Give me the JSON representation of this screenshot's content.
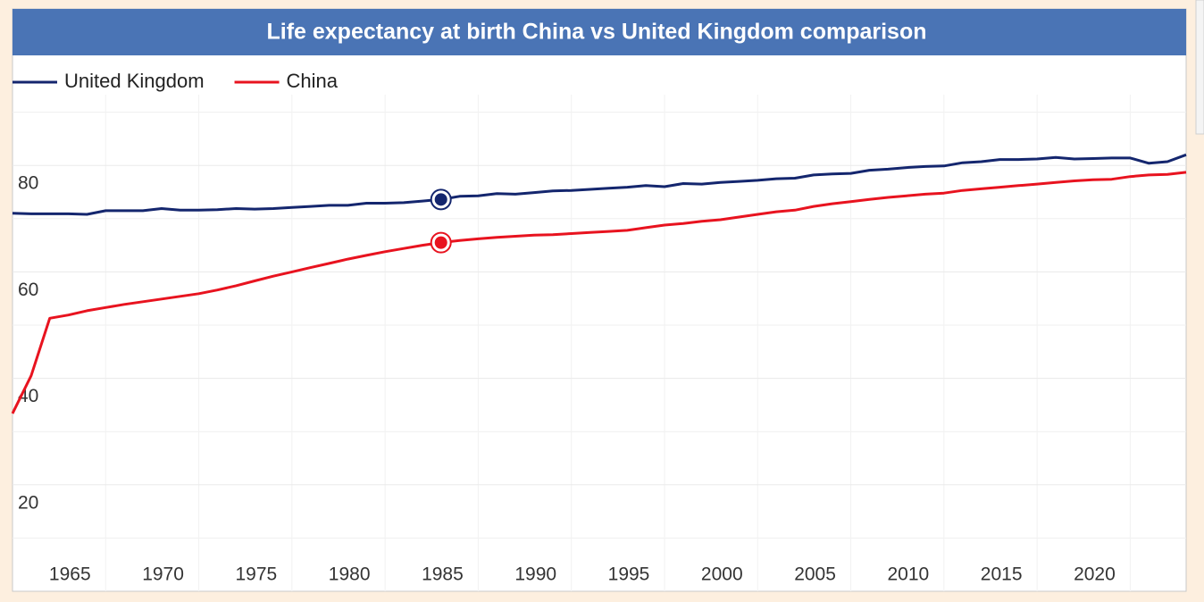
{
  "chart_data": {
    "type": "line",
    "title": "Life expectancy at birth China vs United Kingdom comparison",
    "x": [
      1960,
      1961,
      1962,
      1963,
      1964,
      1965,
      1966,
      1967,
      1968,
      1969,
      1970,
      1971,
      1972,
      1973,
      1974,
      1975,
      1976,
      1977,
      1978,
      1979,
      1980,
      1981,
      1982,
      1983,
      1984,
      1985,
      1986,
      1987,
      1988,
      1989,
      1990,
      1991,
      1992,
      1993,
      1994,
      1995,
      1996,
      1997,
      1998,
      1999,
      2000,
      2001,
      2002,
      2003,
      2004,
      2005,
      2006,
      2007,
      2008,
      2009,
      2010,
      2011,
      2012,
      2013,
      2014,
      2015,
      2016,
      2017,
      2018,
      2019,
      2020,
      2021,
      2022,
      2023
    ],
    "series": [
      {
        "name": "United Kingdom",
        "color": "#14266e",
        "values": [
          71.0,
          70.9,
          70.9,
          70.9,
          70.8,
          71.5,
          71.5,
          71.5,
          71.9,
          71.6,
          71.6,
          71.7,
          71.9,
          71.8,
          71.9,
          72.1,
          72.3,
          72.5,
          72.5,
          72.9,
          72.9,
          73.0,
          73.3,
          73.6,
          74.2,
          74.3,
          74.7,
          74.6,
          74.9,
          75.2,
          75.3,
          75.5,
          75.7,
          75.9,
          76.2,
          76.0,
          76.6,
          76.5,
          76.8,
          77.0,
          77.2,
          77.5,
          77.6,
          78.2,
          78.4,
          78.5,
          79.1,
          79.3,
          79.6,
          79.8,
          79.9,
          80.5,
          80.7,
          81.1,
          81.1,
          81.2,
          81.5,
          81.2,
          81.3,
          81.4,
          81.4,
          80.4,
          80.7,
          82.0
        ]
      },
      {
        "name": "China",
        "color": "#e8131f",
        "values": [
          33.4,
          40.5,
          51.3,
          51.9,
          52.7,
          53.3,
          53.9,
          54.4,
          54.9,
          55.4,
          55.9,
          56.6,
          57.4,
          58.3,
          59.2,
          60.0,
          60.8,
          61.6,
          62.4,
          63.1,
          63.8,
          64.4,
          65.0,
          65.5,
          65.9,
          66.2,
          66.5,
          66.7,
          66.9,
          67.0,
          67.2,
          67.4,
          67.6,
          67.8,
          68.3,
          68.8,
          69.1,
          69.5,
          69.8,
          70.3,
          70.8,
          71.3,
          71.6,
          72.3,
          72.8,
          73.2,
          73.6,
          74.0,
          74.3,
          74.6,
          74.8,
          75.3,
          75.6,
          75.9,
          76.2,
          76.5,
          76.8,
          77.1,
          77.3,
          77.4,
          77.9,
          78.2,
          78.3,
          78.7
        ]
      }
    ],
    "highlight_x": 1983,
    "xlim": [
      1960,
      2023
    ],
    "xticks": [
      1965,
      1970,
      1975,
      1980,
      1985,
      1990,
      1995,
      2000,
      2005,
      2010,
      2015,
      2020
    ],
    "ylim": [
      0,
      100
    ],
    "yticks": [
      20,
      40,
      60,
      80
    ],
    "y_minor_ticks": [
      10,
      30,
      50,
      70,
      90
    ],
    "grid": true,
    "legend": "top-left"
  }
}
